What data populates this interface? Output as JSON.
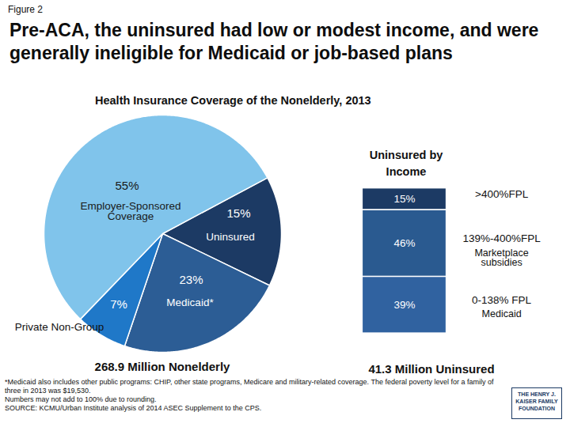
{
  "figure_label": "Figure 2",
  "title": "Pre-ACA, the uninsured had low or modest income, and were generally ineligible for Medicaid or job-based plans",
  "chart_data": [
    {
      "type": "pie",
      "title": "Health Insurance Coverage of the Nonelderly, 2013",
      "categories": [
        "Uninsured",
        "Medicaid*",
        "Private Non-Group",
        "Employer-Sponsored Coverage"
      ],
      "values": [
        15,
        23,
        7,
        55
      ],
      "value_labels": [
        "15%",
        "23%",
        "7%",
        "55%"
      ],
      "colors": [
        "#1c3a64",
        "#2c5d95",
        "#1f78c8",
        "#80c4eb"
      ],
      "data_labels": true,
      "caption": "268.9 Million Nonelderly"
    },
    {
      "type": "bar",
      "stacked": true,
      "title": "Uninsured by Income",
      "categories": [
        ">400%FPL",
        "139%-400%FPL",
        "0-138% FPL"
      ],
      "sublabels": [
        null,
        "Marketplace subsidies",
        "Medicaid"
      ],
      "values": [
        15,
        46,
        39
      ],
      "value_labels": [
        "15%",
        "46%",
        "39%"
      ],
      "colors": [
        "#1c3a64",
        "#2a5a90",
        "#3062a0"
      ],
      "data_labels": true,
      "tick_labels": false,
      "caption": "41.3 Million Uninsured"
    }
  ],
  "notes": [
    "*Medicaid also includes other public programs: CHIP, other state programs, Medicare and military-related coverage. The federal poverty level for a family of three in 2013 was $19,530.",
    "Numbers may not add to 100% due to rounding."
  ],
  "source": "SOURCE: KCMU/Urban Institute analysis of 2014 ASEC Supplement to the CPS.",
  "logo": "THE HENRY J. KAISER FAMILY FOUNDATION"
}
